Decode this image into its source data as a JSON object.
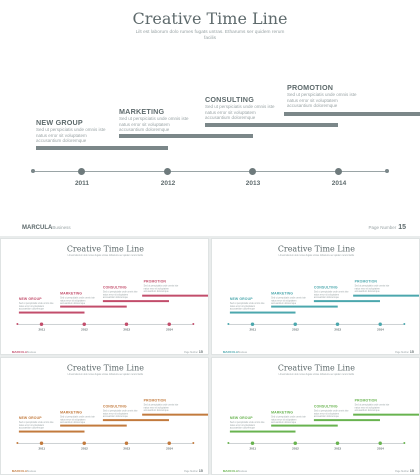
{
  "slide": {
    "title": "Creative Time Line",
    "subtitle": "Lilt est laborum dolo rumes fugats untras. Etharums ser quidem rerum facilis",
    "milestones": [
      {
        "label": "NEW GROUP",
        "text": "Sed ut perspiciatis unde omnis iste natus error sit voluptatem accusantium doloremque"
      },
      {
        "label": "MARKETING",
        "text": "Sed ut perspiciatis unde omnis iste natus error sit voluptatem accusantium doloremque"
      },
      {
        "label": "CONSULTING",
        "text": "Sed ut perspiciatis unde omnis iste natus error sit voluptatem accusantium doloremque"
      },
      {
        "label": "PROMOTION",
        "text": "Sed ut perspiciatis unde omnis iste natus error sit voluptatem accusantium doloremque"
      }
    ],
    "years": [
      "2011",
      "2012",
      "2013",
      "2014"
    ],
    "brand_name": "MARCULA",
    "brand_sub": "Business",
    "page_label": "Page Number",
    "page_number": "15"
  },
  "variants": [
    {
      "theme": "gray",
      "accent": "#7b8789"
    },
    {
      "theme": "red",
      "accent": "#c24d6b"
    },
    {
      "theme": "teal",
      "accent": "#4ba7ad"
    },
    {
      "theme": "orange",
      "accent": "#c27a3d"
    },
    {
      "theme": "green",
      "accent": "#68b34f"
    }
  ]
}
